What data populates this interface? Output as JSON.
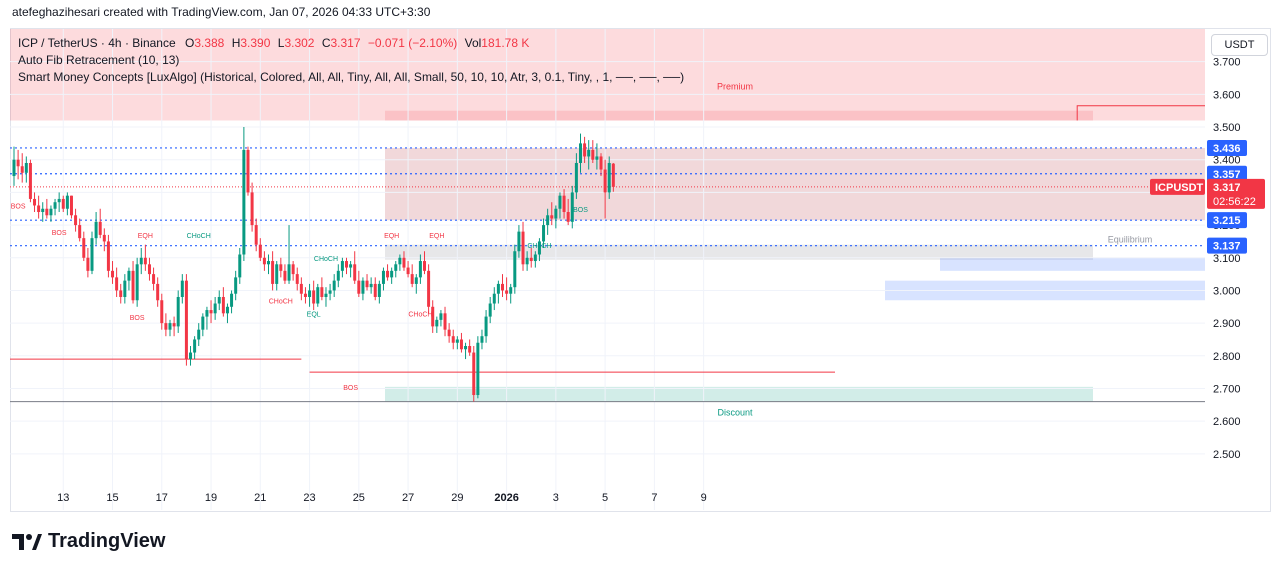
{
  "credit": "atefeghazihesari created with TradingView.com, Jan 07, 2026 04:33 UTC+3:30",
  "legend": {
    "symbol": "ICP / TetherUS · 4h · Binance",
    "o_label": "O",
    "o_val": "3.388",
    "h_label": "H",
    "h_val": "3.390",
    "l_label": "L",
    "l_val": "3.302",
    "c_label": "C",
    "c_val": "3.317",
    "change": "−0.071 (−2.10%)",
    "vol_label": "Vol",
    "vol_val": "181.78 K",
    "indicator1": "Auto Fib Retracement (10, 13)",
    "indicator2": "Smart Money Concepts [LuxAlgo] (Historical, Colored, All, All, Tiny, All, All, Small, 50, 10, 10, Atr, 3, 0.1, Tiny, , 1, ──, ──, ──)"
  },
  "currency": "USDT",
  "brand": "TradingView",
  "colors": {
    "up": "#089981",
    "down": "#f23645",
    "fib": "#2962ff",
    "premium": "#f23645",
    "discount": "#089981"
  },
  "chart_data": {
    "type": "candlestick",
    "title": "ICP / TetherUS · 4h · Binance",
    "ylabel": "USDT",
    "ylim": [
      2.42,
      3.8
    ],
    "y_ticks": [
      "3.700",
      "3.600",
      "3.500",
      "3.400",
      "3.300",
      "3.200",
      "3.100",
      "3.000",
      "2.900",
      "2.800",
      "2.700",
      "2.600",
      "2.500"
    ],
    "x_ticks": [
      "13",
      "15",
      "17",
      "19",
      "21",
      "23",
      "25",
      "27",
      "29",
      "2026",
      "3",
      "5",
      "7",
      "9"
    ],
    "x_tick_index": [
      12,
      24,
      36,
      48,
      60,
      72,
      84,
      96,
      108,
      120,
      132,
      144,
      156,
      168
    ],
    "price_labels": [
      {
        "text": "3.436",
        "value": 3.436
      },
      {
        "text": "3.357",
        "value": 3.357
      },
      {
        "text": "3.215",
        "value": 3.215
      },
      {
        "text": "3.137",
        "value": 3.137
      }
    ],
    "current": {
      "symbol": "ICPUSDT",
      "price": "3.317",
      "countdown": "02:56:22",
      "value": 3.317
    },
    "fib_levels": [
      3.436,
      3.357,
      3.215,
      3.137
    ],
    "zones": [
      {
        "label": "Premium",
        "from": 3.52,
        "to": 3.8
      },
      {
        "label": "Equilibrium",
        "from": 3.094,
        "to": 3.14
      },
      {
        "label": "Discount",
        "from": 2.66,
        "to": 2.705
      }
    ],
    "structure_labels": [
      {
        "text": "BOS",
        "i": 1,
        "y": 3.25,
        "kind": "bear"
      },
      {
        "text": "BOS",
        "i": 11,
        "y": 3.17,
        "kind": "bear"
      },
      {
        "text": "EQH",
        "i": 32,
        "y": 3.16,
        "kind": "bear"
      },
      {
        "text": "BOS",
        "i": 30,
        "y": 2.91,
        "kind": "bear"
      },
      {
        "text": "CHoCH",
        "i": 45,
        "y": 3.16,
        "kind": "bull"
      },
      {
        "text": "CHoCH",
        "i": 65,
        "y": 2.96,
        "kind": "bear"
      },
      {
        "text": "CHoCH",
        "i": 76,
        "y": 3.09,
        "kind": "bull"
      },
      {
        "text": "EQL",
        "i": 73,
        "y": 2.92,
        "kind": "bull"
      },
      {
        "text": "EQH",
        "i": 92,
        "y": 3.16,
        "kind": "bear"
      },
      {
        "text": "EQH",
        "i": 103,
        "y": 3.16,
        "kind": "bear"
      },
      {
        "text": "CHoCH",
        "i": 99,
        "y": 2.92,
        "kind": "bear"
      },
      {
        "text": "BOS",
        "i": 82,
        "y": 2.695,
        "kind": "bear"
      },
      {
        "text": "CHoCH",
        "i": 128,
        "y": 3.13,
        "kind": "bull"
      },
      {
        "text": "BOS",
        "i": 138,
        "y": 3.24,
        "kind": "bull"
      }
    ],
    "candles": [
      [
        3.35,
        3.44,
        3.32,
        3.4
      ],
      [
        3.4,
        3.43,
        3.34,
        3.38
      ],
      [
        3.38,
        3.42,
        3.33,
        3.36
      ],
      [
        3.36,
        3.41,
        3.33,
        3.39
      ],
      [
        3.39,
        3.4,
        3.27,
        3.28
      ],
      [
        3.28,
        3.3,
        3.24,
        3.26
      ],
      [
        3.26,
        3.29,
        3.22,
        3.24
      ],
      [
        3.24,
        3.27,
        3.21,
        3.25
      ],
      [
        3.25,
        3.28,
        3.22,
        3.23
      ],
      [
        3.23,
        3.26,
        3.21,
        3.25
      ],
      [
        3.25,
        3.28,
        3.23,
        3.27
      ],
      [
        3.27,
        3.3,
        3.24,
        3.28
      ],
      [
        3.28,
        3.29,
        3.24,
        3.25
      ],
      [
        3.25,
        3.3,
        3.23,
        3.29
      ],
      [
        3.29,
        3.29,
        3.22,
        3.23
      ],
      [
        3.23,
        3.25,
        3.18,
        3.2
      ],
      [
        3.2,
        3.22,
        3.15,
        3.16
      ],
      [
        3.16,
        3.18,
        3.09,
        3.1
      ],
      [
        3.1,
        3.13,
        3.04,
        3.06
      ],
      [
        3.06,
        3.18,
        3.05,
        3.16
      ],
      [
        3.16,
        3.24,
        3.14,
        3.21
      ],
      [
        3.21,
        3.25,
        3.16,
        3.17
      ],
      [
        3.17,
        3.19,
        3.12,
        3.15
      ],
      [
        3.15,
        3.17,
        3.04,
        3.06
      ],
      [
        3.06,
        3.09,
        3.02,
        3.04
      ],
      [
        3.04,
        3.07,
        2.98,
        3.0
      ],
      [
        3.0,
        3.02,
        2.96,
        2.98
      ],
      [
        2.98,
        3.05,
        2.96,
        3.03
      ],
      [
        3.03,
        3.07,
        3.0,
        3.06
      ],
      [
        3.06,
        3.09,
        2.96,
        2.97
      ],
      [
        2.97,
        3.1,
        2.95,
        3.08
      ],
      [
        3.08,
        3.13,
        3.05,
        3.1
      ],
      [
        3.1,
        3.14,
        3.06,
        3.08
      ],
      [
        3.08,
        3.1,
        3.03,
        3.05
      ],
      [
        3.05,
        3.07,
        3.0,
        3.02
      ],
      [
        3.02,
        3.04,
        2.95,
        2.97
      ],
      [
        2.97,
        2.99,
        2.88,
        2.9
      ],
      [
        2.9,
        2.93,
        2.86,
        2.88
      ],
      [
        2.88,
        2.91,
        2.86,
        2.9
      ],
      [
        2.9,
        2.92,
        2.86,
        2.89
      ],
      [
        2.89,
        3.0,
        2.87,
        2.98
      ],
      [
        2.98,
        3.05,
        2.96,
        3.03
      ],
      [
        3.03,
        3.05,
        2.77,
        2.79
      ],
      [
        2.79,
        2.83,
        2.77,
        2.81
      ],
      [
        2.81,
        2.86,
        2.79,
        2.85
      ],
      [
        2.85,
        2.9,
        2.83,
        2.88
      ],
      [
        2.88,
        2.93,
        2.86,
        2.92
      ],
      [
        2.92,
        2.95,
        2.88,
        2.94
      ],
      [
        2.94,
        2.97,
        2.9,
        2.93
      ],
      [
        2.93,
        2.98,
        2.91,
        2.96
      ],
      [
        2.96,
        3.0,
        2.94,
        2.98
      ],
      [
        2.98,
        3.01,
        2.92,
        2.93
      ],
      [
        2.93,
        2.96,
        2.9,
        2.95
      ],
      [
        2.95,
        3.0,
        2.93,
        2.99
      ],
      [
        2.99,
        3.06,
        2.97,
        3.04
      ],
      [
        3.04,
        3.13,
        3.02,
        3.11
      ],
      [
        3.11,
        3.5,
        3.09,
        3.43
      ],
      [
        3.43,
        3.44,
        3.29,
        3.3
      ],
      [
        3.3,
        3.33,
        3.18,
        3.2
      ],
      [
        3.2,
        3.22,
        3.12,
        3.14
      ],
      [
        3.14,
        3.16,
        3.09,
        3.1
      ],
      [
        3.1,
        3.12,
        3.06,
        3.08
      ],
      [
        3.08,
        3.11,
        3.05,
        3.09
      ],
      [
        3.09,
        3.12,
        3.0,
        3.02
      ],
      [
        3.02,
        3.09,
        3.0,
        3.08
      ],
      [
        3.08,
        3.1,
        3.04,
        3.06
      ],
      [
        3.06,
        3.08,
        3.02,
        3.03
      ],
      [
        3.03,
        3.2,
        3.02,
        3.08
      ],
      [
        3.08,
        3.09,
        3.03,
        3.05
      ],
      [
        3.05,
        3.07,
        3.0,
        3.02
      ],
      [
        3.02,
        3.04,
        2.97,
        2.99
      ],
      [
        2.99,
        3.01,
        2.96,
        2.98
      ],
      [
        2.98,
        3.02,
        2.95,
        3.0
      ],
      [
        3.0,
        3.03,
        2.94,
        2.96
      ],
      [
        2.96,
        3.02,
        2.95,
        3.01
      ],
      [
        3.01,
        3.04,
        2.97,
        2.98
      ],
      [
        2.98,
        3.01,
        2.95,
        2.99
      ],
      [
        2.99,
        3.02,
        2.97,
        3.0
      ],
      [
        3.0,
        3.05,
        2.98,
        3.03
      ],
      [
        3.03,
        3.08,
        3.01,
        3.06
      ],
      [
        3.06,
        3.1,
        3.04,
        3.09
      ],
      [
        3.09,
        3.1,
        3.05,
        3.07
      ],
      [
        3.07,
        3.09,
        3.04,
        3.08
      ],
      [
        3.08,
        3.12,
        3.02,
        3.03
      ],
      [
        3.03,
        3.06,
        2.98,
        2.99
      ],
      [
        2.99,
        3.04,
        2.97,
        3.03
      ],
      [
        3.03,
        3.05,
        3.0,
        3.01
      ],
      [
        3.01,
        3.04,
        2.99,
        3.02
      ],
      [
        3.02,
        3.04,
        2.97,
        2.98
      ],
      [
        2.98,
        3.03,
        2.96,
        3.02
      ],
      [
        3.02,
        3.07,
        3.0,
        3.06
      ],
      [
        3.06,
        3.08,
        3.03,
        3.04
      ],
      [
        3.04,
        3.07,
        3.02,
        3.06
      ],
      [
        3.06,
        3.09,
        3.04,
        3.08
      ],
      [
        3.08,
        3.11,
        3.06,
        3.1
      ],
      [
        3.1,
        3.12,
        3.06,
        3.07
      ],
      [
        3.07,
        3.09,
        3.04,
        3.05
      ],
      [
        3.05,
        3.08,
        3.01,
        3.02
      ],
      [
        3.02,
        3.05,
        2.99,
        3.04
      ],
      [
        3.04,
        3.11,
        3.02,
        3.09
      ],
      [
        3.09,
        3.12,
        3.05,
        3.06
      ],
      [
        3.06,
        3.08,
        2.93,
        2.95
      ],
      [
        2.95,
        2.97,
        2.87,
        2.89
      ],
      [
        2.89,
        2.92,
        2.87,
        2.91
      ],
      [
        2.91,
        2.94,
        2.89,
        2.93
      ],
      [
        2.93,
        2.95,
        2.86,
        2.88
      ],
      [
        2.88,
        2.9,
        2.84,
        2.86
      ],
      [
        2.86,
        2.88,
        2.82,
        2.84
      ],
      [
        2.84,
        2.86,
        2.82,
        2.85
      ],
      [
        2.85,
        2.87,
        2.81,
        2.82
      ],
      [
        2.82,
        2.84,
        2.79,
        2.83
      ],
      [
        2.83,
        2.85,
        2.8,
        2.81
      ],
      [
        2.81,
        2.83,
        2.66,
        2.68
      ],
      [
        2.68,
        2.86,
        2.67,
        2.84
      ],
      [
        2.84,
        2.88,
        2.82,
        2.86
      ],
      [
        2.86,
        2.94,
        2.84,
        2.92
      ],
      [
        2.92,
        2.98,
        2.9,
        2.96
      ],
      [
        2.96,
        3.01,
        2.94,
        2.99
      ],
      [
        2.99,
        3.03,
        2.96,
        3.02
      ],
      [
        3.02,
        3.05,
        2.98,
        3.0
      ],
      [
        3.0,
        3.04,
        2.97,
        2.99
      ],
      [
        2.99,
        3.02,
        2.96,
        3.01
      ],
      [
        3.01,
        3.14,
        2.99,
        3.12
      ],
      [
        3.12,
        3.2,
        3.1,
        3.18
      ],
      [
        3.18,
        3.21,
        3.06,
        3.08
      ],
      [
        3.08,
        3.12,
        3.06,
        3.1
      ],
      [
        3.1,
        3.13,
        3.07,
        3.09
      ],
      [
        3.09,
        3.12,
        3.07,
        3.11
      ],
      [
        3.11,
        3.16,
        3.09,
        3.15
      ],
      [
        3.15,
        3.22,
        3.13,
        3.2
      ],
      [
        3.2,
        3.25,
        3.17,
        3.23
      ],
      [
        3.23,
        3.27,
        3.2,
        3.22
      ],
      [
        3.22,
        3.26,
        3.19,
        3.25
      ],
      [
        3.25,
        3.3,
        3.22,
        3.29
      ],
      [
        3.29,
        3.31,
        3.22,
        3.24
      ],
      [
        3.24,
        3.28,
        3.2,
        3.21
      ],
      [
        3.21,
        3.32,
        3.19,
        3.3
      ],
      [
        3.3,
        3.42,
        3.28,
        3.39
      ],
      [
        3.39,
        3.48,
        3.36,
        3.45
      ],
      [
        3.45,
        3.47,
        3.39,
        3.41
      ],
      [
        3.41,
        3.46,
        3.37,
        3.43
      ],
      [
        3.43,
        3.46,
        3.39,
        3.4
      ],
      [
        3.4,
        3.45,
        3.37,
        3.41
      ],
      [
        3.41,
        3.42,
        3.35,
        3.37
      ],
      [
        3.37,
        3.4,
        3.22,
        3.3
      ],
      [
        3.3,
        3.41,
        3.28,
        3.39
      ],
      [
        3.388,
        3.39,
        3.302,
        3.317
      ]
    ]
  }
}
